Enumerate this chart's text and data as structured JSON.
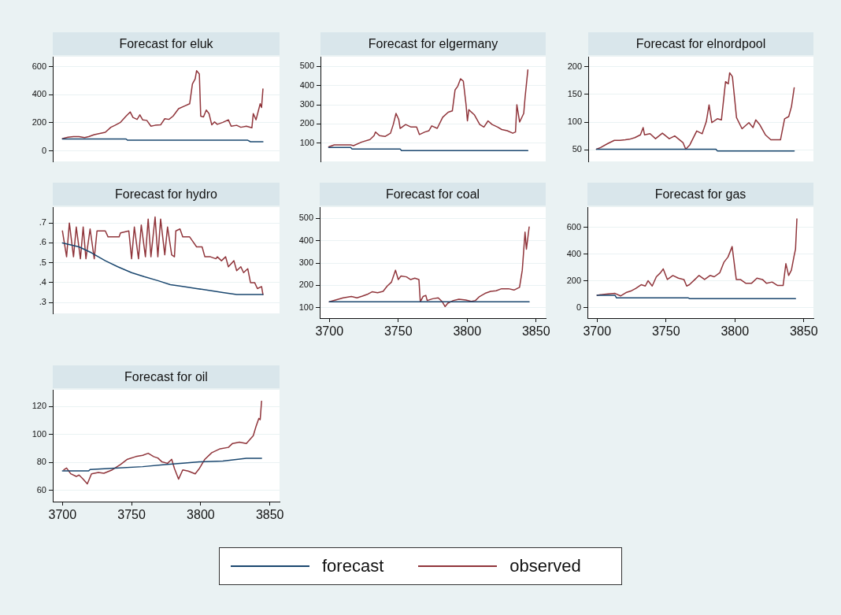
{
  "chart_data": [
    {
      "type": "line",
      "title": "Forecast for eluk",
      "xlim": [
        3693,
        3857
      ],
      "ylim": [
        -75,
        670
      ],
      "yticks": [
        0,
        200,
        400,
        600
      ],
      "grid": "y",
      "tick_labels": "y",
      "legend": "bottom",
      "series": [
        {
          "name": "forecast",
          "color": "#1a476f",
          "x": [
            3700,
            3746,
            3747,
            3834,
            3836,
            3845
          ],
          "values": [
            85,
            85,
            76,
            76,
            65,
            65
          ]
        },
        {
          "name": "observed",
          "color": "#90353b",
          "x": [
            3700,
            3704,
            3708,
            3712,
            3716,
            3719,
            3723,
            3727,
            3731,
            3735,
            3738,
            3742,
            3746,
            3749,
            3751,
            3754,
            3756,
            3758,
            3761,
            3764,
            3767,
            3771,
            3774,
            3777,
            3780,
            3784,
            3788,
            3792,
            3794,
            3796,
            3797,
            3799,
            3800,
            3802,
            3804,
            3806,
            3808,
            3810,
            3812,
            3816,
            3820,
            3822,
            3826,
            3829,
            3833,
            3837,
            3838,
            3840,
            3843,
            3844,
            3845
          ],
          "values": [
            88,
            97,
            101,
            101,
            94,
            101,
            115,
            124,
            132,
            168,
            182,
            203,
            247,
            277,
            238,
            224,
            256,
            221,
            217,
            176,
            182,
            185,
            229,
            224,
            247,
            300,
            318,
            335,
            476,
            512,
            570,
            547,
            247,
            242,
            291,
            265,
            185,
            206,
            189,
            203,
            221,
            176,
            182,
            168,
            176,
            164,
            265,
            221,
            335,
            309,
            441
          ]
        }
      ]
    },
    {
      "type": "line",
      "title": "Forecast for elgermany",
      "xlim": [
        3693,
        3857
      ],
      "ylim": [
        5,
        550
      ],
      "yticks": [
        100,
        200,
        300,
        400,
        500
      ],
      "grid": "y",
      "tick_labels": "y",
      "legend": "bottom",
      "series": [
        {
          "name": "forecast",
          "color": "#1a476f",
          "x": [
            3699,
            3715,
            3716,
            3751,
            3752,
            3844
          ],
          "values": [
            78,
            78,
            70,
            70,
            61,
            61
          ]
        },
        {
          "name": "observed",
          "color": "#90353b",
          "x": [
            3699,
            3703,
            3715,
            3717,
            3723,
            3729,
            3732,
            3733,
            3736,
            3740,
            3744,
            3746,
            3748,
            3750,
            3751,
            3755,
            3759,
            3763,
            3765,
            3769,
            3772,
            3774,
            3778,
            3782,
            3786,
            3789,
            3791,
            3793,
            3795,
            3797,
            3799,
            3800,
            3801,
            3805,
            3809,
            3812,
            3815,
            3818,
            3822,
            3825,
            3829,
            3833,
            3835,
            3836,
            3838,
            3841,
            3842,
            3844
          ],
          "values": [
            81,
            91,
            91,
            87,
            106,
            119,
            139,
            158,
            139,
            135,
            152,
            197,
            255,
            223,
            177,
            197,
            184,
            184,
            145,
            158,
            165,
            190,
            177,
            235,
            261,
            268,
            377,
            397,
            435,
            423,
            300,
            216,
            274,
            248,
            197,
            184,
            216,
            197,
            184,
            171,
            165,
            152,
            158,
            300,
            210,
            255,
            339,
            481
          ]
        }
      ]
    },
    {
      "type": "line",
      "title": "Forecast for elnordpool",
      "xlim": [
        3693,
        3857
      ],
      "ylim": [
        29,
        218
      ],
      "yticks": [
        50,
        100,
        150,
        200
      ],
      "grid": "y",
      "tick_labels": "y",
      "legend": "bottom",
      "series": [
        {
          "name": "forecast",
          "color": "#1a476f",
          "x": [
            3699,
            3786,
            3787,
            3843
          ],
          "values": [
            51,
            51,
            48,
            48
          ]
        },
        {
          "name": "observed",
          "color": "#90353b",
          "x": [
            3699,
            3702,
            3707,
            3712,
            3716,
            3720,
            3723,
            3727,
            3731,
            3733,
            3734,
            3738,
            3742,
            3747,
            3752,
            3756,
            3759,
            3762,
            3764,
            3767,
            3772,
            3776,
            3779,
            3781,
            3783,
            3787,
            3790,
            3793,
            3795,
            3796,
            3798,
            3801,
            3805,
            3810,
            3813,
            3815,
            3818,
            3822,
            3826,
            3833,
            3836,
            3839,
            3841,
            3843
          ],
          "values": [
            51,
            54,
            61,
            67,
            67,
            68,
            69,
            72,
            77,
            90,
            77,
            79,
            70,
            80,
            70,
            75,
            69,
            63,
            51,
            59,
            84,
            79,
            101,
            131,
            99,
            106,
            104,
            173,
            169,
            189,
            182,
            108,
            88,
            99,
            90,
            104,
            95,
            77,
            68,
            68,
            106,
            110,
            128,
            162
          ]
        }
      ]
    },
    {
      "type": "line",
      "title": "Forecast for hydro",
      "xlim": [
        3693,
        3857
      ],
      "ylim": [
        0.245,
        0.78
      ],
      "yticks": [
        {
          "value": 0.3,
          "label": ".3"
        },
        {
          "value": 0.4,
          "label": ".4"
        },
        {
          "value": 0.5,
          "label": ".5"
        },
        {
          "value": 0.6,
          "label": ".6"
        },
        {
          "value": 0.7,
          "label": ".7"
        }
      ],
      "grid": "y",
      "tick_labels": "y",
      "legend": "bottom",
      "series": [
        {
          "name": "forecast",
          "color": "#1a476f",
          "x": [
            3700,
            3712,
            3721,
            3731,
            3740,
            3750,
            3759,
            3769,
            3778,
            3788,
            3797,
            3807,
            3816,
            3826,
            3845
          ],
          "values": [
            0.6,
            0.58,
            0.55,
            0.51,
            0.48,
            0.45,
            0.43,
            0.41,
            0.39,
            0.38,
            0.37,
            0.36,
            0.35,
            0.34,
            0.34
          ]
        },
        {
          "name": "observed",
          "color": "#90353b",
          "x": [
            3700,
            3703,
            3705,
            3708,
            3710,
            3713,
            3715,
            3717,
            3720,
            3723,
            3725,
            3731,
            3733,
            3741,
            3742,
            3748,
            3750,
            3752,
            3755,
            3757,
            3760,
            3762,
            3764,
            3767,
            3769,
            3771,
            3774,
            3776,
            3779,
            3781,
            3782,
            3785,
            3787,
            3792,
            3794,
            3797,
            3801,
            3803,
            3807,
            3811,
            3812,
            3815,
            3818,
            3820,
            3824,
            3826,
            3829,
            3831,
            3834,
            3836,
            3839,
            3841,
            3844,
            3845
          ],
          "values": [
            0.66,
            0.53,
            0.7,
            0.53,
            0.68,
            0.52,
            0.68,
            0.52,
            0.67,
            0.52,
            0.66,
            0.66,
            0.63,
            0.63,
            0.65,
            0.66,
            0.52,
            0.68,
            0.52,
            0.69,
            0.53,
            0.72,
            0.53,
            0.73,
            0.53,
            0.72,
            0.54,
            0.68,
            0.54,
            0.53,
            0.66,
            0.67,
            0.63,
            0.63,
            0.61,
            0.58,
            0.58,
            0.53,
            0.53,
            0.52,
            0.53,
            0.51,
            0.53,
            0.48,
            0.51,
            0.46,
            0.48,
            0.45,
            0.47,
            0.4,
            0.4,
            0.37,
            0.38,
            0.34
          ]
        }
      ]
    },
    {
      "type": "line",
      "title": "Forecast for coal",
      "xlim": [
        3693,
        3857
      ],
      "xticks": [
        3700,
        3750,
        3800,
        3850
      ],
      "ylim": [
        53,
        551
      ],
      "yticks": [
        100,
        200,
        300,
        400,
        500
      ],
      "grid": "y",
      "legend": "bottom",
      "series": [
        {
          "name": "forecast",
          "color": "#1a476f",
          "x": [
            3700,
            3845
          ],
          "values": [
            126,
            126
          ]
        },
        {
          "name": "observed",
          "color": "#90353b",
          "x": [
            3700,
            3705,
            3710,
            3716,
            3720,
            3724,
            3728,
            3731,
            3735,
            3739,
            3742,
            3745,
            3748,
            3750,
            3752,
            3756,
            3759,
            3762,
            3765,
            3766,
            3768,
            3770,
            3771,
            3775,
            3779,
            3782,
            3784,
            3786,
            3790,
            3794,
            3799,
            3803,
            3806,
            3809,
            3813,
            3817,
            3821,
            3825,
            3830,
            3834,
            3838,
            3840,
            3842,
            3843,
            3845
          ],
          "values": [
            126,
            135,
            144,
            150,
            144,
            152,
            161,
            171,
            167,
            173,
            197,
            214,
            268,
            226,
            242,
            238,
            226,
            232,
            226,
            126,
            150,
            155,
            132,
            140,
            144,
            126,
            105,
            120,
            132,
            138,
            134,
            128,
            132,
            150,
            164,
            173,
            176,
            185,
            185,
            179,
            191,
            268,
            439,
            362,
            462
          ]
        }
      ]
    },
    {
      "type": "line",
      "title": "Forecast for gas",
      "xlim": [
        3693,
        3857
      ],
      "xticks": [
        3700,
        3750,
        3800,
        3850
      ],
      "ylim": [
        -77,
        753
      ],
      "yticks": [
        0,
        200,
        400,
        600
      ],
      "grid": "y",
      "legend": "bottom",
      "series": [
        {
          "name": "forecast",
          "color": "#1a476f",
          "x": [
            3700,
            3713,
            3714,
            3766,
            3767,
            3844
          ],
          "values": [
            94,
            94,
            75,
            75,
            69,
            69
          ]
        },
        {
          "name": "observed",
          "color": "#90353b",
          "x": [
            3700,
            3704,
            3708,
            3713,
            3717,
            3721,
            3725,
            3728,
            3732,
            3735,
            3737,
            3740,
            3743,
            3746,
            3748,
            3751,
            3755,
            3759,
            3763,
            3765,
            3767,
            3771,
            3774,
            3778,
            3782,
            3785,
            3789,
            3792,
            3795,
            3798,
            3801,
            3804,
            3808,
            3812,
            3816,
            3820,
            3823,
            3827,
            3831,
            3835,
            3837,
            3839,
            3841,
            3843,
            3844,
            3845
          ],
          "values": [
            94,
            100,
            104,
            108,
            89,
            114,
            128,
            144,
            173,
            163,
            203,
            163,
            232,
            262,
            291,
            212,
            242,
            222,
            212,
            163,
            173,
            212,
            242,
            212,
            242,
            232,
            262,
            340,
            380,
            458,
            212,
            212,
            183,
            183,
            222,
            212,
            183,
            193,
            167,
            167,
            330,
            242,
            281,
            390,
            439,
            665
          ]
        }
      ]
    },
    {
      "type": "line",
      "title": "Forecast for oil",
      "xlim": [
        3693,
        3857
      ],
      "xticks": [
        3700,
        3750,
        3800,
        3850
      ],
      "ylim": [
        52,
        132
      ],
      "yticks": [
        60,
        80,
        100,
        120
      ],
      "grid": "y",
      "legend": "bottom",
      "series": [
        {
          "name": "forecast",
          "color": "#1a476f",
          "x": [
            3700,
            3719,
            3720,
            3738,
            3758,
            3774,
            3787,
            3799,
            3816,
            3833,
            3844
          ],
          "values": [
            74,
            74,
            75,
            76,
            77,
            78.5,
            79.4,
            80.4,
            81,
            83,
            83
          ]
        },
        {
          "name": "observed",
          "color": "#90353b",
          "x": [
            3701,
            3703,
            3706,
            3710,
            3712,
            3715,
            3718,
            3721,
            3726,
            3730,
            3736,
            3742,
            3747,
            3753,
            3758,
            3762,
            3766,
            3769,
            3772,
            3776,
            3779,
            3781,
            3784,
            3787,
            3791,
            3796,
            3799,
            3803,
            3808,
            3814,
            3820,
            3823,
            3828,
            3833,
            3838,
            3840,
            3842,
            3843,
            3844
          ],
          "values": [
            74.7,
            76,
            71.9,
            70,
            71,
            68.1,
            64.7,
            71.9,
            72.8,
            72.3,
            74.7,
            78.5,
            82.3,
            84.2,
            85.1,
            86.6,
            84.2,
            83.2,
            80.4,
            79.4,
            82.3,
            75.7,
            68.1,
            74.7,
            73.8,
            71.9,
            75.7,
            82.3,
            87,
            89.8,
            90.8,
            93.6,
            94.5,
            93.6,
            99.2,
            105.8,
            111.5,
            110.6,
            123.8
          ]
        }
      ]
    }
  ]
}
